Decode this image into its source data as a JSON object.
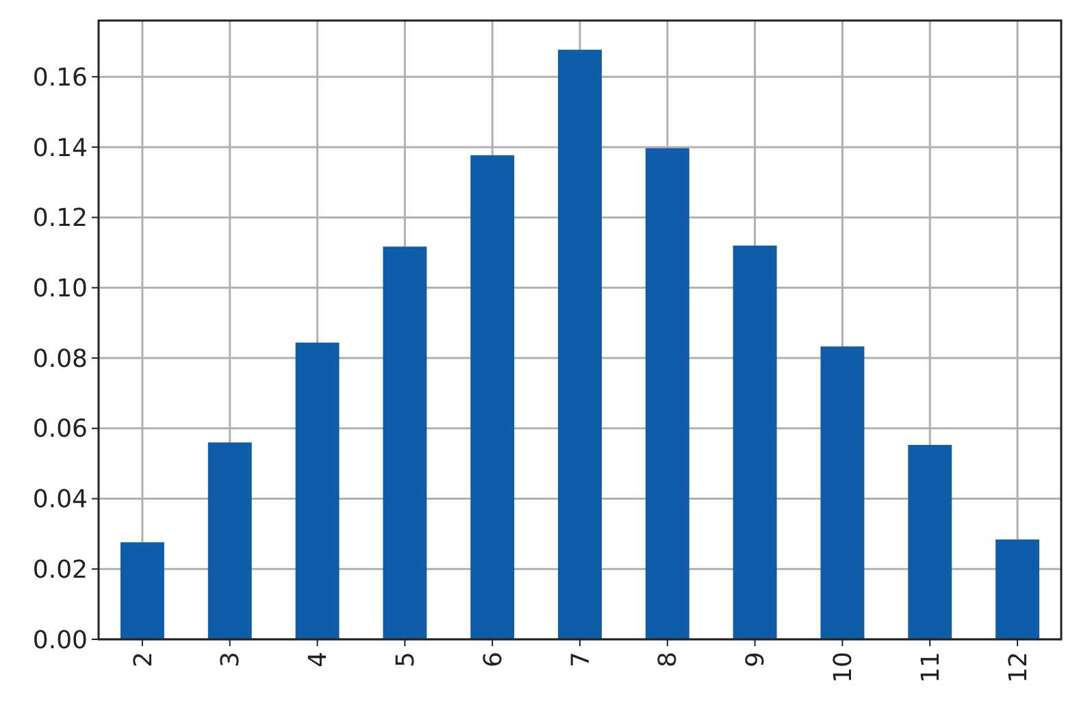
{
  "chart_data": {
    "type": "bar",
    "categories": [
      "2",
      "3",
      "4",
      "5",
      "6",
      "7",
      "8",
      "9",
      "10",
      "11",
      "12"
    ],
    "values": [
      0.0276,
      0.056,
      0.0844,
      0.1117,
      0.1377,
      0.1677,
      0.1397,
      0.112,
      0.0833,
      0.0553,
      0.0284
    ],
    "color": "#0f5ca8",
    "ylim": [
      0,
      0.176
    ],
    "yticks": [
      {
        "value": 0,
        "label": "0.00"
      },
      {
        "value": 0.02,
        "label": "0.02"
      },
      {
        "value": 0.04,
        "label": "0.04"
      },
      {
        "value": 0.06,
        "label": "0.06"
      },
      {
        "value": 0.08,
        "label": "0.08"
      },
      {
        "value": 0.1,
        "label": "0.10"
      },
      {
        "value": 0.12,
        "label": "0.12"
      },
      {
        "value": 0.14,
        "label": "0.14"
      },
      {
        "value": 0.16,
        "label": "0.16"
      }
    ],
    "grid": true
  }
}
